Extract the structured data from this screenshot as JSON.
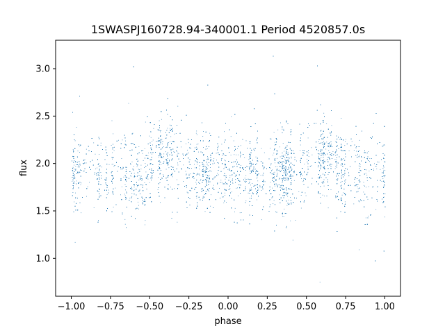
{
  "chart_data": {
    "type": "scatter",
    "title": "1SWASPJ160728.94-340001.1 Period 4520857.0s",
    "xlabel": "phase",
    "ylabel": "flux",
    "xlim": [
      -1.1,
      1.1
    ],
    "ylim": [
      0.6,
      3.3
    ],
    "xticks": [
      -1.0,
      -0.75,
      -0.5,
      -0.25,
      0.0,
      0.25,
      0.5,
      0.75,
      1.0
    ],
    "xtick_labels": [
      "−1.00",
      "−0.75",
      "−0.50",
      "−0.25",
      "0.00",
      "0.25",
      "0.50",
      "0.75",
      "1.00"
    ],
    "yticks": [
      1.0,
      1.5,
      2.0,
      2.5,
      3.0
    ],
    "ytick_labels": [
      "1.0",
      "1.5",
      "2.0",
      "2.5",
      "3.0"
    ],
    "grid": false,
    "marker_color": "#1f77b4",
    "phase_range": [
      -1.0,
      1.0
    ],
    "flux_median": 1.9,
    "flux_spread": 0.2,
    "hump_peaks": [
      {
        "phase": -0.4,
        "flux": 2.1
      },
      {
        "phase": 0.6,
        "flux": 2.1
      }
    ],
    "outlier_range": [
      0.72,
      3.2
    ]
  }
}
